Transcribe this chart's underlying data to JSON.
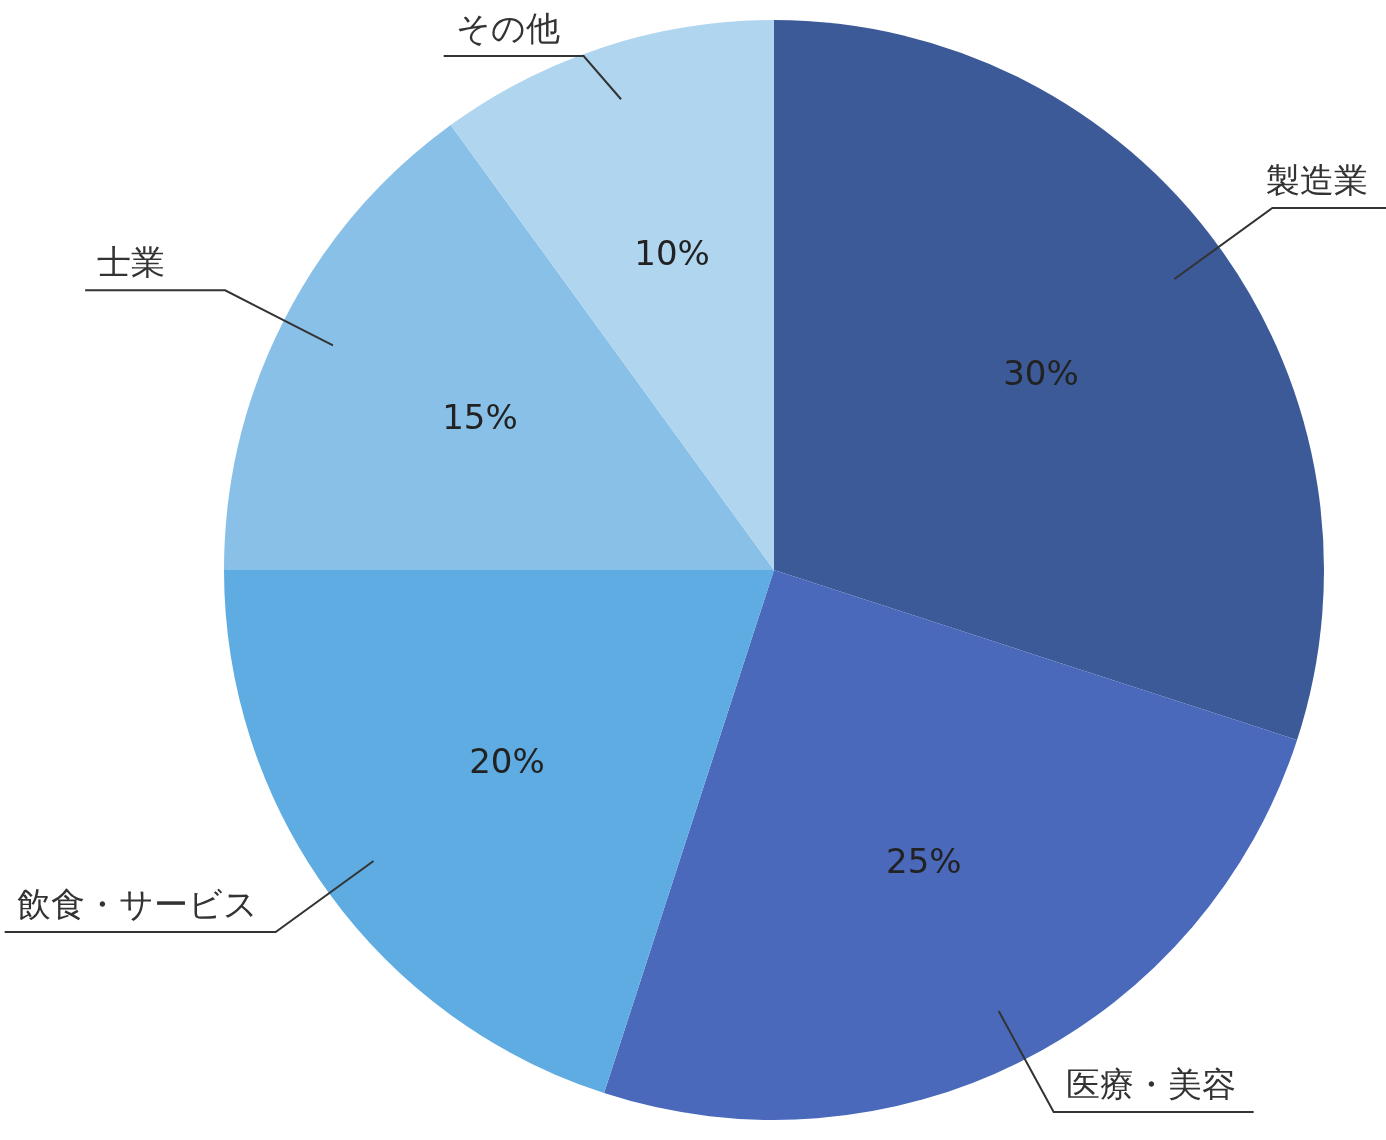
{
  "chart_data": {
    "type": "pie",
    "categories": [
      "製造業",
      "医療・美容",
      "飲食・サービス",
      "士業",
      "その他"
    ],
    "values": [
      30,
      25,
      20,
      15,
      10
    ],
    "colors": [
      "#3c5a98",
      "#4a69bb",
      "#5eace2",
      "#88c0e8",
      "#b0d5ef"
    ],
    "value_labels": [
      "30%",
      "25%",
      "20%",
      "15%",
      "10%"
    ],
    "legend": false
  }
}
